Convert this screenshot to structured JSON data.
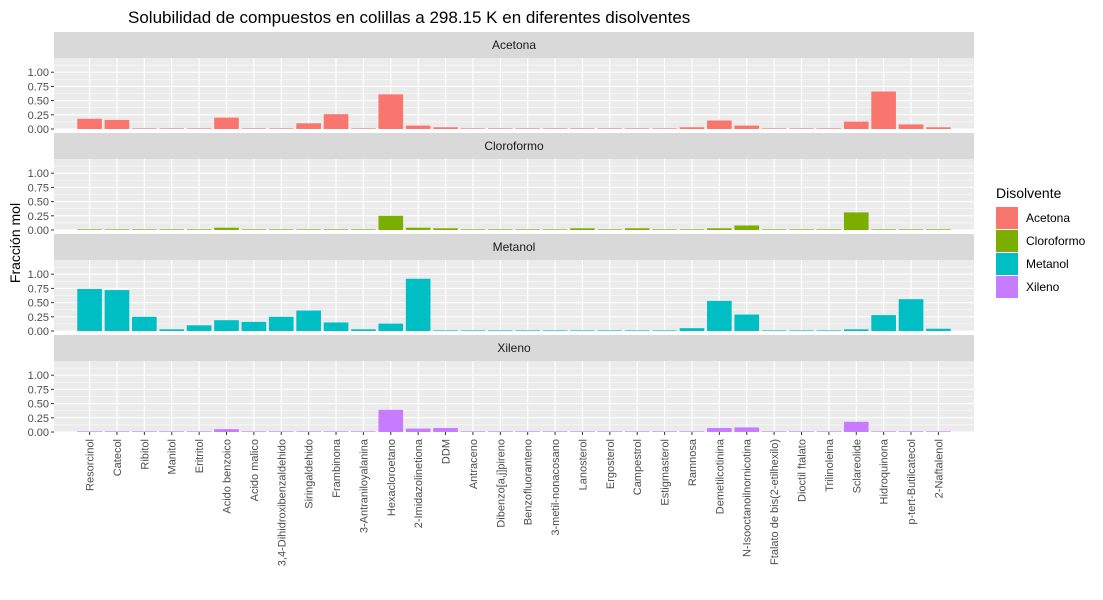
{
  "chart_data": {
    "type": "bar",
    "title": "Solubilidad de compuestos en colillas a 298.15 K en diferentes disolventes",
    "xlabel": "",
    "ylabel": "Fracción mol",
    "ylim": [
      0,
      1.25
    ],
    "yticks": [
      0.0,
      0.25,
      0.5,
      0.75,
      1.0
    ],
    "ytick_labels": [
      "0.00",
      "0.25",
      "0.50",
      "0.75",
      "1.00"
    ],
    "grid": true,
    "legend_title": "Disolvente",
    "legend_position": "right",
    "categories": [
      "Resorcinol",
      "Catecol",
      "Ribitol",
      "Manitol",
      "Eritritol",
      "Acido benzoico",
      "Acido malico",
      "3,4-Dihidroxibenzaldehido",
      "Siringaldehido",
      "Frambinona",
      "3-Antraniloyalanina",
      "Hexacloroetano",
      "2-Imidazolinetiona",
      "DDM",
      "Antraceno",
      "Dibenzo[a,j]pireno",
      "Benzofluoranteno",
      "3-metil-nonacosano",
      "Lanosterol",
      "Ergosterol",
      "Campestrol",
      "Estigmasterol",
      "Ramnosa",
      "Demetilcotinina",
      "N-Isooctanoilnornicotina",
      "Ftalato de bis(2-etilhexilo)",
      "Dioctil ftalato",
      "Trilinoleina",
      "Sclareolide",
      "Hidroquinona",
      "p-tert-Butilcatecol",
      "2-Naftalenol"
    ],
    "series": [
      {
        "name": "Acetona",
        "color": "#F8766D",
        "values": [
          0.18,
          0.16,
          0.01,
          0.01,
          0.01,
          0.2,
          0.01,
          0.01,
          0.1,
          0.26,
          0.01,
          0.61,
          0.06,
          0.03,
          0.01,
          0.01,
          0.01,
          0.01,
          0.01,
          0.01,
          0.01,
          0.01,
          0.03,
          0.15,
          0.06,
          0.01,
          0.01,
          0.01,
          0.13,
          0.66,
          0.08,
          0.03
        ]
      },
      {
        "name": "Cloroformo",
        "color": "#7CAE00",
        "values": [
          0.01,
          0.01,
          0.01,
          0.01,
          0.01,
          0.04,
          0.01,
          0.01,
          0.01,
          0.01,
          0.01,
          0.25,
          0.04,
          0.03,
          0.01,
          0.01,
          0.01,
          0.01,
          0.03,
          0.01,
          0.03,
          0.01,
          0.01,
          0.03,
          0.08,
          0.01,
          0.01,
          0.01,
          0.31,
          0.01,
          0.01,
          0.01
        ]
      },
      {
        "name": "Metanol",
        "color": "#00BFC4",
        "values": [
          0.74,
          0.72,
          0.25,
          0.03,
          0.1,
          0.19,
          0.16,
          0.25,
          0.36,
          0.15,
          0.03,
          0.13,
          0.92,
          0.01,
          0.01,
          0.01,
          0.01,
          0.01,
          0.01,
          0.01,
          0.01,
          0.01,
          0.05,
          0.53,
          0.29,
          0.01,
          0.01,
          0.01,
          0.03,
          0.28,
          0.56,
          0.04
        ]
      },
      {
        "name": "Xileno",
        "color": "#C77CFF",
        "values": [
          0.01,
          0.01,
          0.01,
          0.01,
          0.01,
          0.05,
          0.01,
          0.01,
          0.01,
          0.01,
          0.01,
          0.39,
          0.06,
          0.07,
          0.01,
          0.01,
          0.01,
          0.01,
          0.01,
          0.01,
          0.01,
          0.01,
          0.01,
          0.07,
          0.08,
          0.01,
          0.01,
          0.01,
          0.18,
          0.01,
          0.01,
          0.01
        ]
      }
    ]
  }
}
